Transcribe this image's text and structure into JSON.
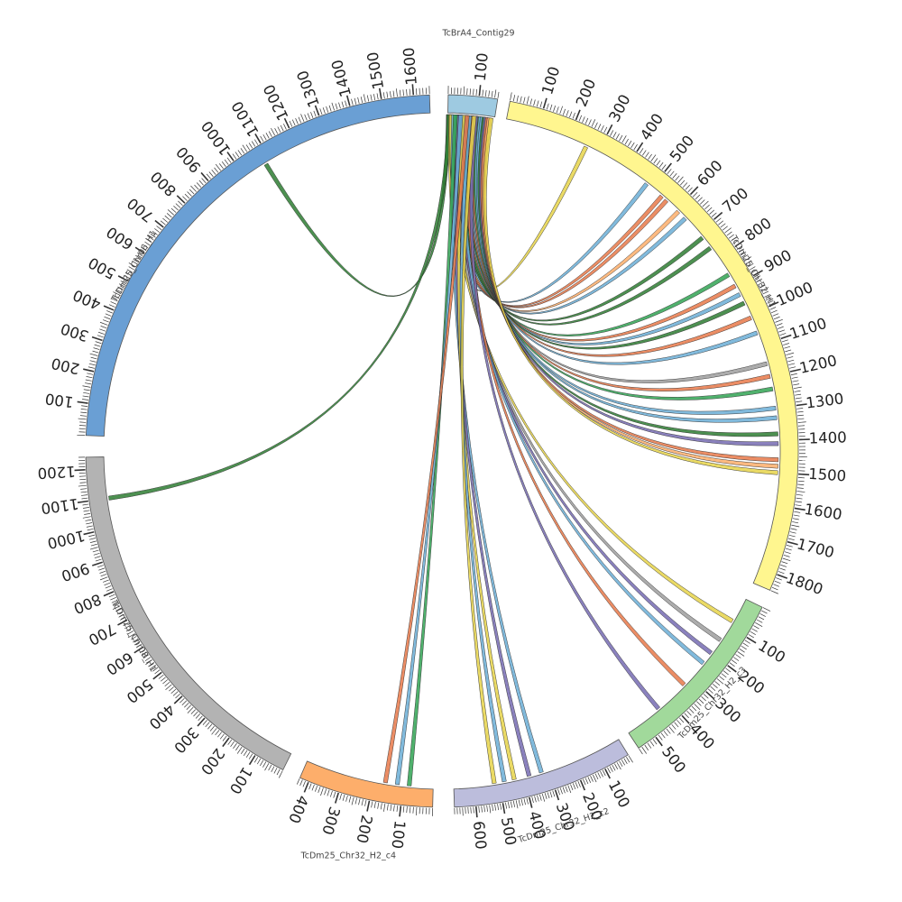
{
  "diagram": {
    "type": "circos",
    "segments": [
      {
        "id": "contig29",
        "label": "TcBrA4_Contig29",
        "length": 160,
        "color": "#9ecae1",
        "ticks": [
          100
        ]
      },
      {
        "id": "chr32h1",
        "label": "TcDm25_Chr32_H1",
        "length": 1850,
        "color": "#fff68f",
        "ticks": [
          100,
          200,
          300,
          400,
          500,
          600,
          700,
          800,
          900,
          1000,
          1100,
          1200,
          1300,
          1400,
          1500,
          1600,
          1700,
          1800
        ]
      },
      {
        "id": "c3",
        "label": "TcDm25_Chr32_H2_c3",
        "length": 560,
        "color": "#a1d99b",
        "ticks": [
          100,
          200,
          300,
          400,
          500
        ]
      },
      {
        "id": "c2",
        "label": "TcDm25_Chr32_H2_c2",
        "length": 680,
        "color": "#bcbddc",
        "ticks": [
          100,
          200,
          300,
          400,
          500,
          600
        ]
      },
      {
        "id": "c4",
        "label": "TcDm25_Chr32_H2_c4",
        "length": 430,
        "color": "#fdae6b",
        "ticks": [
          100,
          200,
          300,
          400
        ]
      },
      {
        "id": "chr08",
        "label": "TcDm25_Chr08_H1",
        "length": 1240,
        "color": "#b3b3b3",
        "ticks": [
          100,
          200,
          300,
          400,
          500,
          600,
          700,
          800,
          900,
          1000,
          1100,
          1200
        ]
      },
      {
        "id": "chr06",
        "label": "TcDm25_Chr06_H1",
        "length": 1650,
        "color": "#6a9fd4",
        "ticks": [
          100,
          200,
          300,
          400,
          500,
          600,
          700,
          800,
          900,
          1000,
          1100,
          1200,
          1300,
          1400,
          1500,
          1600
        ]
      }
    ],
    "links": [
      {
        "src": "contig29",
        "src_pos": 2,
        "dst": "chr06",
        "dst_pos": 1080,
        "color": "#2e7d32"
      },
      {
        "src": "contig29",
        "src_pos": 4,
        "dst": "chr08",
        "dst_pos": 1100,
        "color": "#2e7d32"
      },
      {
        "src": "contig29",
        "src_pos": 10,
        "dst": "chr32h1",
        "dst_pos": 260,
        "color": "#e6d34a"
      },
      {
        "src": "contig29",
        "src_pos": 15,
        "dst": "chr32h1",
        "dst_pos": 480,
        "color": "#6baed6"
      },
      {
        "src": "contig29",
        "src_pos": 22,
        "dst": "chr32h1",
        "dst_pos": 540,
        "color": "#e8794a"
      },
      {
        "src": "contig29",
        "src_pos": 28,
        "dst": "chr32h1",
        "dst_pos": 560,
        "color": "#e8794a"
      },
      {
        "src": "contig29",
        "src_pos": 34,
        "dst": "chr32h1",
        "dst_pos": 610,
        "color": "#fdae6b"
      },
      {
        "src": "contig29",
        "src_pos": 40,
        "dst": "chr32h1",
        "dst_pos": 640,
        "color": "#6baed6"
      },
      {
        "src": "contig29",
        "src_pos": 46,
        "dst": "chr32h1",
        "dst_pos": 720,
        "color": "#2e7d32"
      },
      {
        "src": "contig29",
        "src_pos": 52,
        "dst": "chr32h1",
        "dst_pos": 760,
        "color": "#2e7d32"
      },
      {
        "src": "contig29",
        "src_pos": 58,
        "dst": "chr32h1",
        "dst_pos": 860,
        "color": "#31a354"
      },
      {
        "src": "contig29",
        "src_pos": 64,
        "dst": "chr32h1",
        "dst_pos": 900,
        "color": "#e8794a"
      },
      {
        "src": "contig29",
        "src_pos": 70,
        "dst": "chr32h1",
        "dst_pos": 930,
        "color": "#6baed6"
      },
      {
        "src": "contig29",
        "src_pos": 76,
        "dst": "chr32h1",
        "dst_pos": 960,
        "color": "#2e7d32"
      },
      {
        "src": "contig29",
        "src_pos": 82,
        "dst": "chr32h1",
        "dst_pos": 1010,
        "color": "#e8794a"
      },
      {
        "src": "contig29",
        "src_pos": 88,
        "dst": "chr32h1",
        "dst_pos": 1060,
        "color": "#6baed6"
      },
      {
        "src": "contig29",
        "src_pos": 94,
        "dst": "chr32h1",
        "dst_pos": 1160,
        "color": "#9e9e9e"
      },
      {
        "src": "contig29",
        "src_pos": 100,
        "dst": "chr32h1",
        "dst_pos": 1200,
        "color": "#e8794a"
      },
      {
        "src": "contig29",
        "src_pos": 106,
        "dst": "chr32h1",
        "dst_pos": 1240,
        "color": "#31a354"
      },
      {
        "src": "contig29",
        "src_pos": 112,
        "dst": "chr32h1",
        "dst_pos": 1300,
        "color": "#6baed6"
      },
      {
        "src": "contig29",
        "src_pos": 118,
        "dst": "chr32h1",
        "dst_pos": 1330,
        "color": "#6baed6"
      },
      {
        "src": "contig29",
        "src_pos": 124,
        "dst": "chr32h1",
        "dst_pos": 1380,
        "color": "#2e7d32"
      },
      {
        "src": "contig29",
        "src_pos": 130,
        "dst": "chr32h1",
        "dst_pos": 1410,
        "color": "#756bb1"
      },
      {
        "src": "contig29",
        "src_pos": 136,
        "dst": "chr32h1",
        "dst_pos": 1460,
        "color": "#e8794a"
      },
      {
        "src": "contig29",
        "src_pos": 142,
        "dst": "chr32h1",
        "dst_pos": 1480,
        "color": "#fdae6b"
      },
      {
        "src": "contig29",
        "src_pos": 148,
        "dst": "chr32h1",
        "dst_pos": 1500,
        "color": "#e6d34a"
      },
      {
        "src": "contig29",
        "src_pos": 12,
        "dst": "c3",
        "dst_pos": 80,
        "color": "#e6d34a"
      },
      {
        "src": "contig29",
        "src_pos": 30,
        "dst": "c3",
        "dst_pos": 150,
        "color": "#9e9e9e"
      },
      {
        "src": "contig29",
        "src_pos": 48,
        "dst": "c3",
        "dst_pos": 200,
        "color": "#756bb1"
      },
      {
        "src": "contig29",
        "src_pos": 60,
        "dst": "c3",
        "dst_pos": 240,
        "color": "#6baed6"
      },
      {
        "src": "contig29",
        "src_pos": 84,
        "dst": "c3",
        "dst_pos": 330,
        "color": "#e8794a"
      },
      {
        "src": "contig29",
        "src_pos": 96,
        "dst": "c3",
        "dst_pos": 440,
        "color": "#756bb1"
      },
      {
        "src": "contig29",
        "src_pos": 20,
        "dst": "c2",
        "dst_pos": 330,
        "color": "#6baed6"
      },
      {
        "src": "contig29",
        "src_pos": 38,
        "dst": "c2",
        "dst_pos": 380,
        "color": "#756bb1"
      },
      {
        "src": "contig29",
        "src_pos": 54,
        "dst": "c2",
        "dst_pos": 440,
        "color": "#e6d34a"
      },
      {
        "src": "contig29",
        "src_pos": 74,
        "dst": "c2",
        "dst_pos": 480,
        "color": "#6baed6"
      },
      {
        "src": "contig29",
        "src_pos": 90,
        "dst": "c2",
        "dst_pos": 520,
        "color": "#e6d34a"
      },
      {
        "src": "contig29",
        "src_pos": 26,
        "dst": "c4",
        "dst_pos": 80,
        "color": "#31a354"
      },
      {
        "src": "contig29",
        "src_pos": 44,
        "dst": "c4",
        "dst_pos": 120,
        "color": "#6baed6"
      },
      {
        "src": "contig29",
        "src_pos": 66,
        "dst": "c4",
        "dst_pos": 160,
        "color": "#e8794a"
      }
    ]
  }
}
